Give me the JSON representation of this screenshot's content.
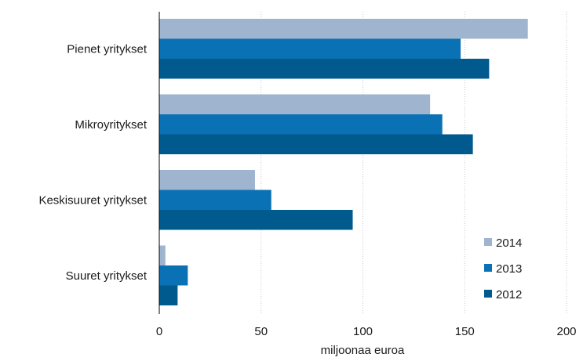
{
  "chart_data": {
    "type": "bar",
    "orientation": "horizontal",
    "categories": [
      "Pienet yritykset",
      "Mikroyritykset",
      "Keskisuuret yritykset",
      "Suuret yritykset"
    ],
    "series": [
      {
        "name": "2014",
        "values": [
          181,
          133,
          47,
          3
        ],
        "color": "#9fb4cf"
      },
      {
        "name": "2013",
        "values": [
          148,
          139,
          55,
          14
        ],
        "color": "#0a72b4"
      },
      {
        "name": "2012",
        "values": [
          162,
          154,
          95,
          9
        ],
        "color": "#005a8e"
      }
    ],
    "xlabel": "miljoonaa euroa",
    "xlim": [
      0,
      200
    ],
    "xticks": [
      0,
      50,
      100,
      150,
      200
    ],
    "grid": "vertical dotted",
    "legend_position": "bottom-right"
  }
}
